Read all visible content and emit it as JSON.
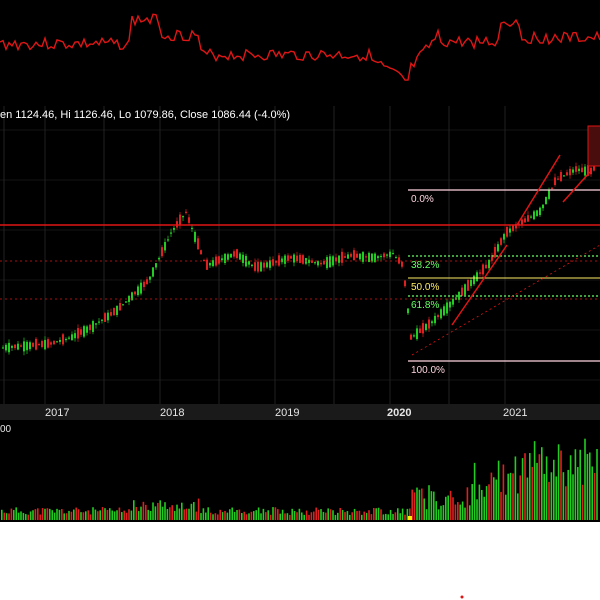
{
  "chart_data": {
    "type": "candlestick",
    "ohlc_label": "en 1124.46, Hi 1126.46, Lo 1079.86, Close 1086.44 (-4.0%)",
    "x_ticks": [
      "2017",
      "2018",
      "2019",
      "2020",
      "2021"
    ],
    "volume_axis_label": "00",
    "fib_levels": [
      {
        "label": "0.0%",
        "color": "#ffd6e0"
      },
      {
        "label": "38.2%",
        "color": "#66ff66"
      },
      {
        "label": "50.0%",
        "color": "#ffee66"
      },
      {
        "label": "61.8%",
        "color": "#66ff66"
      },
      {
        "label": "100.0%",
        "color": "#ffd6e0"
      }
    ],
    "price_series": {
      "name": "",
      "x": [
        "2016-06",
        "2016-09",
        "2016-12",
        "2017-03",
        "2017-06",
        "2017-09",
        "2017-12",
        "2018-01",
        "2018-03",
        "2018-05",
        "2018-08",
        "2018-11",
        "2019-02",
        "2019-05",
        "2019-08",
        "2019-11",
        "2020-01",
        "2020-02",
        "2020-03",
        "2020-04",
        "2020-06",
        "2020-09",
        "2020-12",
        "2021-02",
        "2021-04",
        "2021-06",
        "2021-08",
        "2021-09"
      ],
      "values": [
        0.06,
        0.07,
        0.08,
        0.11,
        0.16,
        0.24,
        0.39,
        0.62,
        0.72,
        0.46,
        0.52,
        0.45,
        0.5,
        0.47,
        0.51,
        0.5,
        0.52,
        0.46,
        0.11,
        0.18,
        0.3,
        0.47,
        0.62,
        0.73,
        0.88,
        0.93,
        0.92,
        1.0
      ]
    },
    "colors": {
      "up": "#22cc22",
      "down": "#e02020",
      "accent": "#ff2020",
      "background": "#000000",
      "grid": "#2a2a2a"
    }
  }
}
